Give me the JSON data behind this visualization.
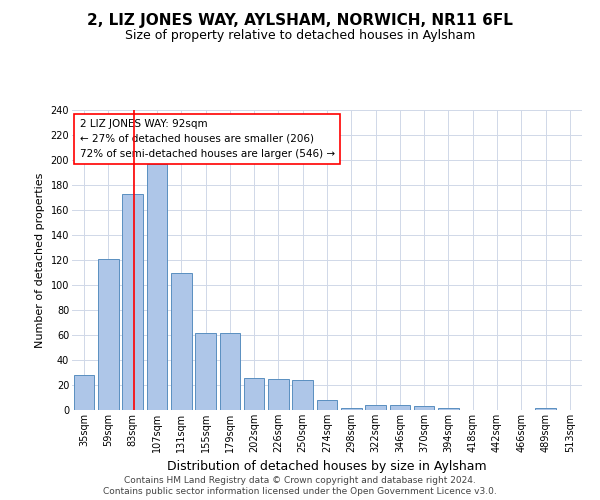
{
  "title": "2, LIZ JONES WAY, AYLSHAM, NORWICH, NR11 6FL",
  "subtitle": "Size of property relative to detached houses in Aylsham",
  "xlabel": "Distribution of detached houses by size in Aylsham",
  "ylabel": "Number of detached properties",
  "categories": [
    "35sqm",
    "59sqm",
    "83sqm",
    "107sqm",
    "131sqm",
    "155sqm",
    "179sqm",
    "202sqm",
    "226sqm",
    "250sqm",
    "274sqm",
    "298sqm",
    "322sqm",
    "346sqm",
    "370sqm",
    "394sqm",
    "418sqm",
    "442sqm",
    "466sqm",
    "489sqm",
    "513sqm"
  ],
  "values": [
    28,
    121,
    173,
    197,
    110,
    62,
    62,
    26,
    25,
    24,
    8,
    2,
    4,
    4,
    3,
    2,
    0,
    0,
    0,
    2,
    0
  ],
  "bar_color": "#aec6e8",
  "bar_edge_color": "#5a8fc0",
  "annotation_text_line1": "2 LIZ JONES WAY: 92sqm",
  "annotation_text_line2": "← 27% of detached houses are smaller (206)",
  "annotation_text_line3": "72% of semi-detached houses are larger (546) →",
  "red_line_bin_index": 2,
  "ylim": [
    0,
    240
  ],
  "yticks": [
    0,
    20,
    40,
    60,
    80,
    100,
    120,
    140,
    160,
    180,
    200,
    220,
    240
  ],
  "footer_line1": "Contains HM Land Registry data © Crown copyright and database right 2024.",
  "footer_line2": "Contains public sector information licensed under the Open Government Licence v3.0.",
  "background_color": "#ffffff",
  "grid_color": "#d0d8e8",
  "title_fontsize": 11,
  "subtitle_fontsize": 9,
  "ylabel_fontsize": 8,
  "xlabel_fontsize": 9,
  "tick_fontsize": 7,
  "annot_fontsize": 7.5,
  "footer_fontsize": 6.5
}
